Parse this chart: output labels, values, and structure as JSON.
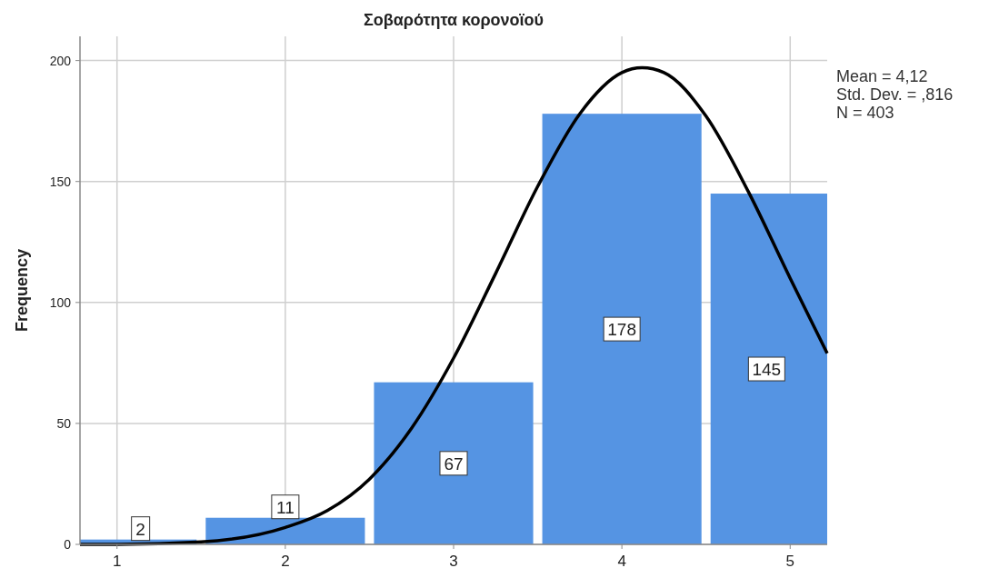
{
  "chart_data": {
    "type": "histogram",
    "title": "Σοβαρότητα κορονοϊού",
    "ylabel": "Frequency",
    "xlim": [
      0.78,
      5.22
    ],
    "ylim": [
      0,
      210
    ],
    "xticks": [
      1,
      2,
      3,
      4,
      5
    ],
    "yticks": [
      0,
      50,
      100,
      150,
      200
    ],
    "grid": true,
    "annotations": [
      "Mean = 4,12",
      "Std. Dev. = ,816",
      "N = 403"
    ],
    "series": [
      {
        "color": "#5594e3",
        "bins": [
          0.78,
          1.5,
          2.5,
          3.5,
          4.5,
          5.22
        ],
        "values": [
          2,
          11,
          67,
          178,
          145
        ],
        "value_labels": [
          "2",
          "11",
          "67",
          "178",
          "145"
        ]
      },
      {
        "type": "line",
        "color": "#000000",
        "x": [
          0.78,
          1,
          1.5,
          2,
          2.25,
          2.5,
          2.75,
          3,
          3.25,
          3.5,
          3.75,
          4,
          4.12,
          4.25,
          4.5,
          4.75,
          5,
          5.22
        ],
        "values": [
          0,
          0,
          1,
          7,
          14,
          27,
          48,
          77,
          112,
          148,
          178,
          195,
          197,
          195,
          177,
          146,
          110,
          79
        ]
      }
    ]
  }
}
